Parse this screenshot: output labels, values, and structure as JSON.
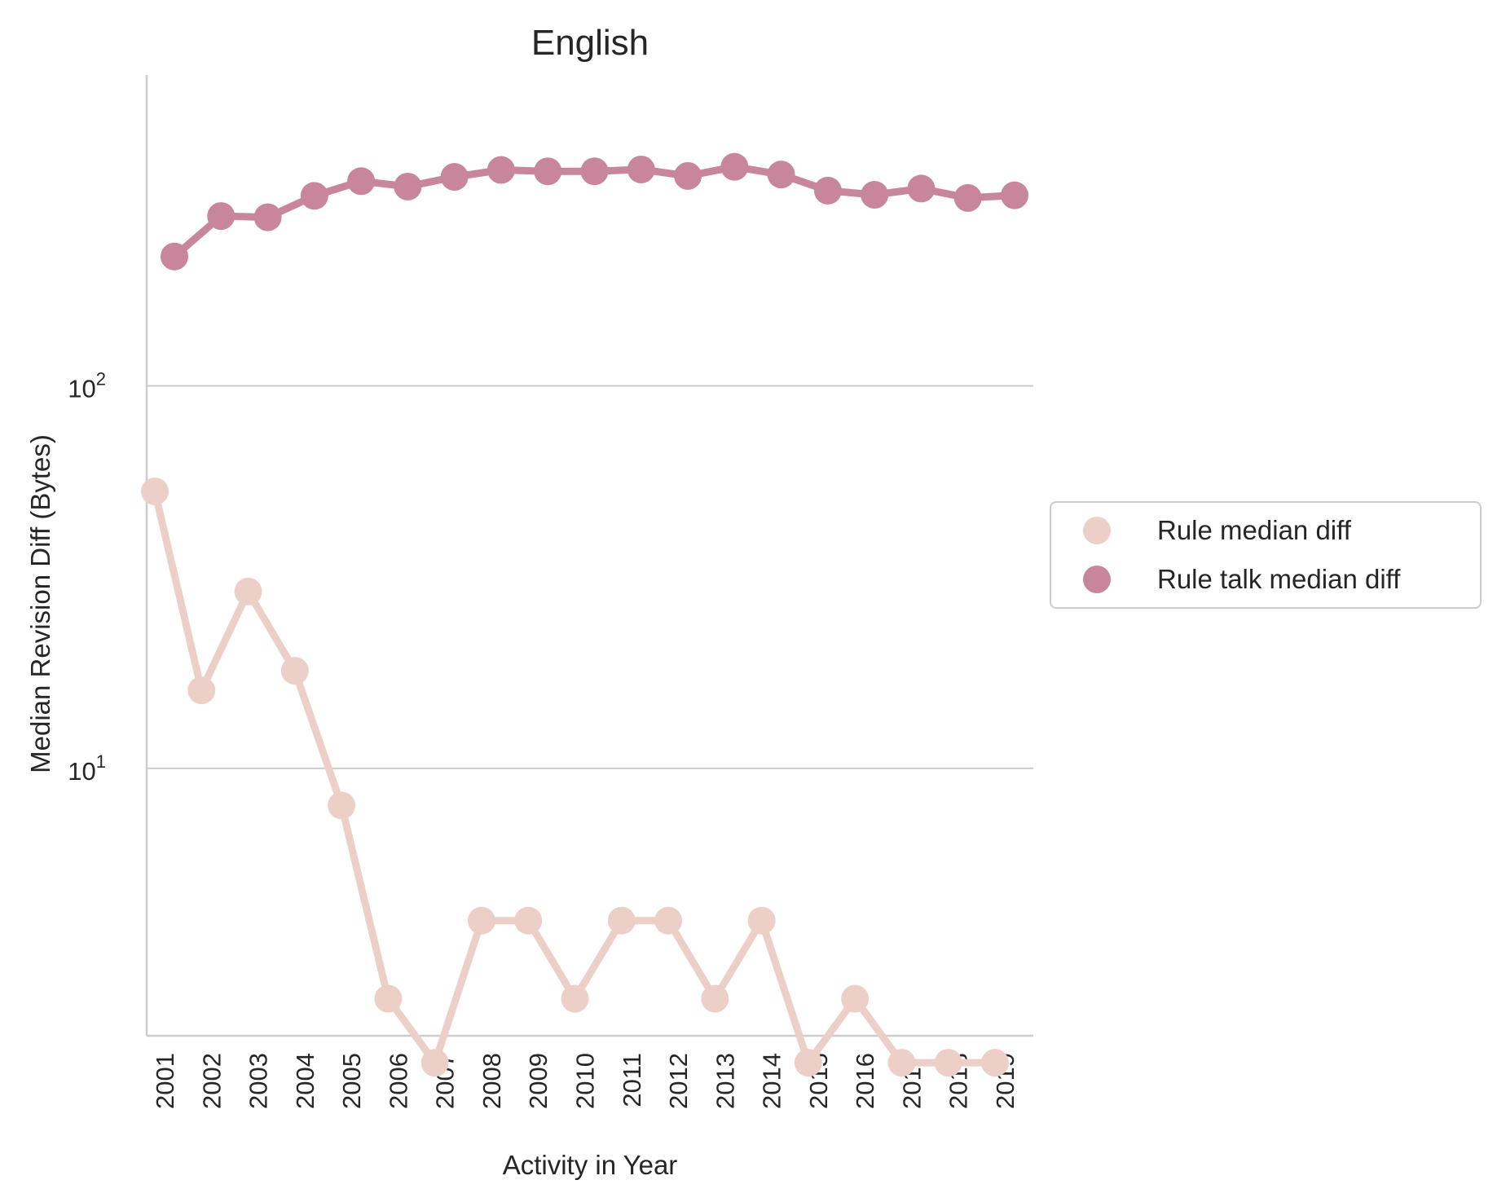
{
  "chart_data": {
    "type": "line",
    "title": "English",
    "xlabel": "Activity in Year",
    "ylabel": "Median Revision Diff (Bytes)",
    "yscale": "log",
    "ylim": [
      2.0,
      650
    ],
    "yticks": [
      {
        "value": 10,
        "base": "10",
        "exp": "1"
      },
      {
        "value": 100,
        "base": "10",
        "exp": "2"
      }
    ],
    "grid": "horizontal",
    "legend_position": "right",
    "categories": [
      "2001",
      "2002",
      "2003",
      "2004",
      "2005",
      "2006",
      "2007",
      "2008",
      "2009",
      "2010",
      "2011",
      "2012",
      "2013",
      "2014",
      "2015",
      "2016",
      "2017",
      "2018",
      "2019"
    ],
    "series": [
      {
        "name": "Rule median diff",
        "color": "#ecd0c8",
        "values": [
          53,
          16,
          29,
          18,
          8,
          2.5,
          1.7,
          4,
          4,
          2.5,
          4,
          4,
          2.5,
          4,
          1.7,
          2.5,
          1.7,
          1.7,
          1.7
        ]
      },
      {
        "name": "Rule talk median diff",
        "color": "#c8869c",
        "values": [
          218,
          278,
          276,
          314,
          343,
          332,
          352,
          367,
          364,
          364,
          368,
          354,
          374,
          357,
          324,
          316,
          328,
          310,
          315
        ]
      }
    ]
  }
}
